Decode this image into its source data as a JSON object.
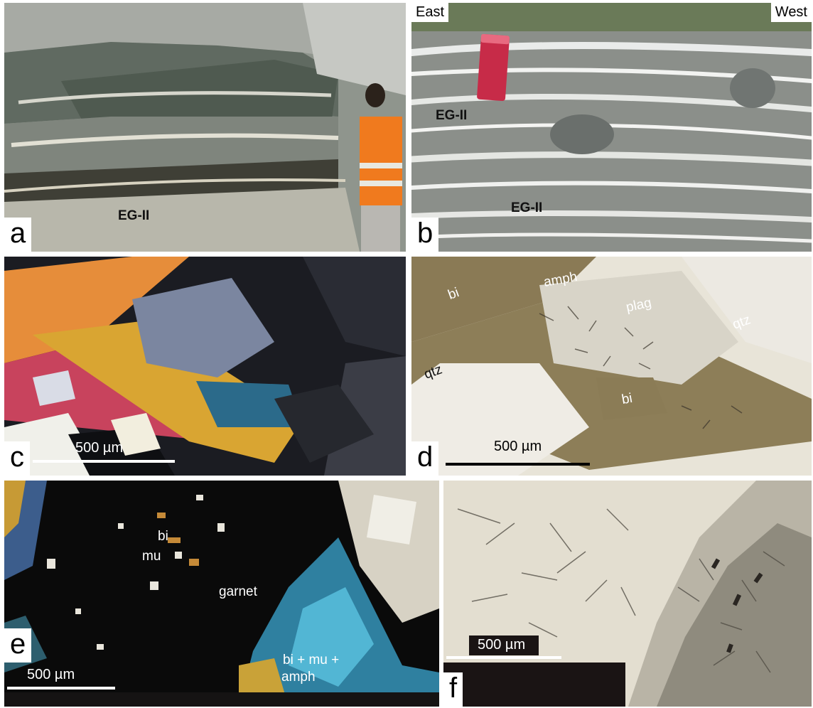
{
  "panels": {
    "a": {
      "letter": "a",
      "labels": [
        "EG-II"
      ]
    },
    "b": {
      "letter": "b",
      "direction_left": "East",
      "direction_right": "West",
      "labels": [
        "EG-II",
        "EG-II"
      ]
    },
    "c": {
      "letter": "c",
      "scale": "500 µm"
    },
    "d": {
      "letter": "d",
      "scale": "500 µm",
      "minerals": [
        "bi",
        "amph",
        "plag",
        "qtz",
        "qtz",
        "bi"
      ]
    },
    "e": {
      "letter": "e",
      "scale": "500 µm",
      "minerals": [
        "bi",
        "mu",
        "garnet",
        "bi + mu +",
        "amph"
      ]
    },
    "f": {
      "letter": "f",
      "scale": "500 µm"
    }
  }
}
